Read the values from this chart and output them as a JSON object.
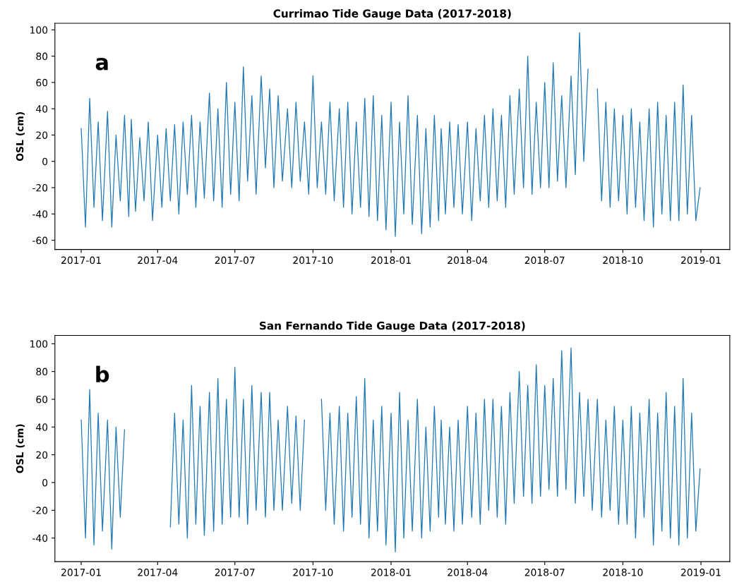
{
  "chart_data": [
    {
      "type": "line",
      "title": "Currimao Tide Gauge Data (2017-2018)",
      "ylabel": "OSL (cm)",
      "annotations": [
        "a"
      ],
      "x": [
        "2017-01-01",
        "2017-01-06",
        "2017-01-11",
        "2017-01-16",
        "2017-01-21",
        "2017-01-26",
        "2017-02-01",
        "2017-02-06",
        "2017-02-11",
        "2017-02-16",
        "2017-02-21",
        "2017-02-26",
        "2017-03-01",
        "2017-03-06",
        "2017-03-11",
        "2017-03-16",
        "2017-03-21",
        "2017-03-26",
        "2017-04-01",
        "2017-04-06",
        "2017-04-11",
        "2017-04-16",
        "2017-04-21",
        "2017-04-26",
        "2017-05-01",
        "2017-05-06",
        "2017-05-11",
        "2017-05-16",
        "2017-05-21",
        "2017-05-26",
        "2017-06-01",
        "2017-06-06",
        "2017-06-11",
        "2017-06-16",
        "2017-06-21",
        "2017-06-26",
        "2017-07-01",
        "2017-07-06",
        "2017-07-11",
        "2017-07-16",
        "2017-07-21",
        "2017-07-26",
        "2017-08-01",
        "2017-08-06",
        "2017-08-11",
        "2017-08-16",
        "2017-08-21",
        "2017-08-26",
        "2017-09-01",
        "2017-09-06",
        "2017-09-11",
        "2017-09-16",
        "2017-09-21",
        "2017-09-26",
        "2017-10-01",
        "2017-10-06",
        "2017-10-11",
        "2017-10-16",
        "2017-10-21",
        "2017-10-26",
        "2017-11-01",
        "2017-11-06",
        "2017-11-11",
        "2017-11-16",
        "2017-11-21",
        "2017-11-26",
        "2017-12-01",
        "2017-12-06",
        "2017-12-11",
        "2017-12-16",
        "2017-12-21",
        "2017-12-26",
        "2018-01-01",
        "2018-01-06",
        "2018-01-11",
        "2018-01-16",
        "2018-01-21",
        "2018-01-26",
        "2018-02-01",
        "2018-02-06",
        "2018-02-11",
        "2018-02-16",
        "2018-02-21",
        "2018-02-26",
        "2018-03-01",
        "2018-03-06",
        "2018-03-11",
        "2018-03-16",
        "2018-03-21",
        "2018-03-26",
        "2018-04-01",
        "2018-04-06",
        "2018-04-11",
        "2018-04-16",
        "2018-04-21",
        "2018-04-26",
        "2018-05-01",
        "2018-05-06",
        "2018-05-11",
        "2018-05-16",
        "2018-05-21",
        "2018-05-26",
        "2018-06-01",
        "2018-06-06",
        "2018-06-11",
        "2018-06-16",
        "2018-06-21",
        "2018-06-26",
        "2018-07-01",
        "2018-07-06",
        "2018-07-11",
        "2018-07-16",
        "2018-07-21",
        "2018-07-26",
        "2018-08-01",
        "2018-08-06",
        "2018-08-11",
        "2018-08-16",
        "2018-08-21",
        "2018-08-26",
        "2018-09-01",
        "2018-09-06",
        "2018-09-11",
        "2018-09-16",
        "2018-09-21",
        "2018-09-26",
        "2018-10-01",
        "2018-10-06",
        "2018-10-11",
        "2018-10-16",
        "2018-10-21",
        "2018-10-26",
        "2018-11-01",
        "2018-11-06",
        "2018-11-11",
        "2018-11-16",
        "2018-11-21",
        "2018-11-26",
        "2018-12-01",
        "2018-12-06",
        "2018-12-11",
        "2018-12-16",
        "2018-12-21",
        "2018-12-26",
        "2018-12-31"
      ],
      "series": [
        {
          "color": "#1f77b4",
          "values": [
            25,
            -50,
            48,
            -35,
            30,
            -45,
            38,
            -50,
            20,
            -30,
            35,
            -42,
            32,
            -38,
            18,
            -30,
            30,
            -45,
            20,
            -35,
            25,
            -30,
            28,
            -40,
            30,
            -25,
            35,
            -35,
            30,
            -28,
            52,
            -30,
            40,
            -35,
            60,
            -25,
            45,
            -30,
            72,
            -15,
            50,
            -25,
            65,
            -5,
            55,
            -20,
            50,
            -15,
            40,
            -20,
            45,
            -15,
            30,
            -25,
            65,
            -20,
            30,
            -25,
            45,
            -30,
            40,
            -35,
            45,
            -40,
            30,
            -35,
            48,
            -42,
            50,
            -45,
            35,
            -52,
            45,
            -57,
            30,
            -40,
            50,
            -48,
            35,
            -55,
            25,
            -50,
            35,
            -45,
            25,
            -40,
            30,
            -35,
            28,
            -40,
            30,
            -45,
            25,
            -30,
            35,
            -35,
            40,
            -30,
            35,
            -35,
            50,
            -25,
            55,
            -20,
            80,
            -25,
            45,
            -20,
            60,
            -20,
            75,
            -15,
            50,
            -20,
            65,
            -10,
            98,
            0,
            70,
            null,
            55,
            -30,
            45,
            -35,
            40,
            -30,
            35,
            -40,
            40,
            -35,
            30,
            -45,
            40,
            -50,
            45,
            -40,
            35,
            -45,
            45,
            -45,
            58,
            -40,
            35,
            -45,
            -20
          ]
        }
      ],
      "xlim": [
        "2016-12-01",
        "2019-02-04"
      ],
      "xticks": [
        "2017-01",
        "2017-04",
        "2017-07",
        "2017-10",
        "2018-01",
        "2018-04",
        "2018-07",
        "2018-10",
        "2019-01"
      ],
      "ylim": [
        -67,
        105
      ],
      "yticks": [
        -60,
        -40,
        -20,
        0,
        20,
        40,
        60,
        80,
        100
      ]
    },
    {
      "type": "line",
      "title": "San Fernando Tide Gauge Data (2017-2018)",
      "ylabel": "OSL (cm)",
      "annotations": [
        "b"
      ],
      "x": [
        "2017-01-01",
        "2017-01-06",
        "2017-01-11",
        "2017-01-16",
        "2017-01-21",
        "2017-01-26",
        "2017-02-01",
        "2017-02-06",
        "2017-02-11",
        "2017-02-16",
        "2017-02-21",
        "2017-02-26",
        "2017-04-16",
        "2017-04-21",
        "2017-04-26",
        "2017-05-01",
        "2017-05-06",
        "2017-05-11",
        "2017-05-16",
        "2017-05-21",
        "2017-05-26",
        "2017-06-01",
        "2017-06-06",
        "2017-06-11",
        "2017-06-16",
        "2017-06-21",
        "2017-06-26",
        "2017-07-01",
        "2017-07-06",
        "2017-07-11",
        "2017-07-16",
        "2017-07-21",
        "2017-07-26",
        "2017-08-01",
        "2017-08-06",
        "2017-08-11",
        "2017-08-16",
        "2017-08-21",
        "2017-08-26",
        "2017-09-01",
        "2017-09-06",
        "2017-09-11",
        "2017-09-16",
        "2017-09-21",
        "2017-09-26",
        "2017-10-11",
        "2017-10-16",
        "2017-10-21",
        "2017-10-26",
        "2017-11-01",
        "2017-11-06",
        "2017-11-11",
        "2017-11-16",
        "2017-11-21",
        "2017-11-26",
        "2017-12-01",
        "2017-12-06",
        "2017-12-11",
        "2017-12-16",
        "2017-12-21",
        "2017-12-26",
        "2018-01-01",
        "2018-01-06",
        "2018-01-11",
        "2018-01-16",
        "2018-01-21",
        "2018-01-26",
        "2018-02-01",
        "2018-02-06",
        "2018-02-11",
        "2018-02-16",
        "2018-02-21",
        "2018-02-26",
        "2018-03-01",
        "2018-03-06",
        "2018-03-11",
        "2018-03-16",
        "2018-03-21",
        "2018-03-26",
        "2018-04-01",
        "2018-04-06",
        "2018-04-11",
        "2018-04-16",
        "2018-04-21",
        "2018-04-26",
        "2018-05-01",
        "2018-05-06",
        "2018-05-11",
        "2018-05-16",
        "2018-05-21",
        "2018-05-26",
        "2018-06-01",
        "2018-06-06",
        "2018-06-11",
        "2018-06-16",
        "2018-06-21",
        "2018-06-26",
        "2018-07-01",
        "2018-07-06",
        "2018-07-11",
        "2018-07-16",
        "2018-07-21",
        "2018-07-26",
        "2018-08-01",
        "2018-08-06",
        "2018-08-11",
        "2018-08-16",
        "2018-08-21",
        "2018-08-26",
        "2018-09-01",
        "2018-09-06",
        "2018-09-11",
        "2018-09-16",
        "2018-09-21",
        "2018-09-26",
        "2018-10-01",
        "2018-10-06",
        "2018-10-11",
        "2018-10-16",
        "2018-10-21",
        "2018-10-26",
        "2018-11-01",
        "2018-11-06",
        "2018-11-11",
        "2018-11-16",
        "2018-11-21",
        "2018-11-26",
        "2018-12-01",
        "2018-12-06",
        "2018-12-11",
        "2018-12-16",
        "2018-12-21",
        "2018-12-26",
        "2018-12-31"
      ],
      "series": [
        {
          "color": "#1f77b4",
          "values": [
            45,
            -40,
            67,
            -45,
            50,
            -35,
            45,
            -48,
            40,
            -25,
            38,
            null,
            -32,
            50,
            -30,
            45,
            -40,
            70,
            -30,
            55,
            -38,
            65,
            -35,
            75,
            -30,
            60,
            -25,
            83,
            -25,
            60,
            -30,
            70,
            -20,
            65,
            -25,
            65,
            -20,
            45,
            -20,
            55,
            -15,
            48,
            -20,
            45,
            null,
            60,
            -20,
            50,
            -30,
            55,
            -35,
            50,
            -25,
            62,
            -30,
            75,
            -40,
            45,
            -35,
            55,
            -45,
            50,
            -50,
            65,
            -40,
            45,
            -35,
            60,
            -40,
            40,
            -35,
            55,
            -25,
            45,
            -30,
            40,
            -35,
            45,
            -30,
            55,
            -25,
            50,
            -30,
            60,
            -20,
            60,
            -25,
            55,
            -30,
            65,
            -15,
            80,
            -10,
            70,
            -15,
            85,
            -10,
            70,
            -5,
            75,
            -10,
            95,
            -5,
            97,
            -15,
            65,
            -10,
            60,
            -20,
            60,
            -25,
            45,
            -20,
            55,
            -30,
            45,
            -30,
            55,
            -40,
            50,
            -25,
            60,
            -45,
            50,
            -35,
            65,
            -40,
            55,
            -45,
            75,
            -40,
            50,
            -35,
            10
          ]
        }
      ],
      "xlim": [
        "2016-12-01",
        "2019-02-04"
      ],
      "xticks": [
        "2017-01",
        "2017-04",
        "2017-07",
        "2017-10",
        "2018-01",
        "2018-04",
        "2018-07",
        "2018-10",
        "2019-01"
      ],
      "ylim": [
        -57,
        106
      ],
      "yticks": [
        -40,
        -20,
        0,
        20,
        40,
        60,
        80,
        100
      ]
    }
  ]
}
